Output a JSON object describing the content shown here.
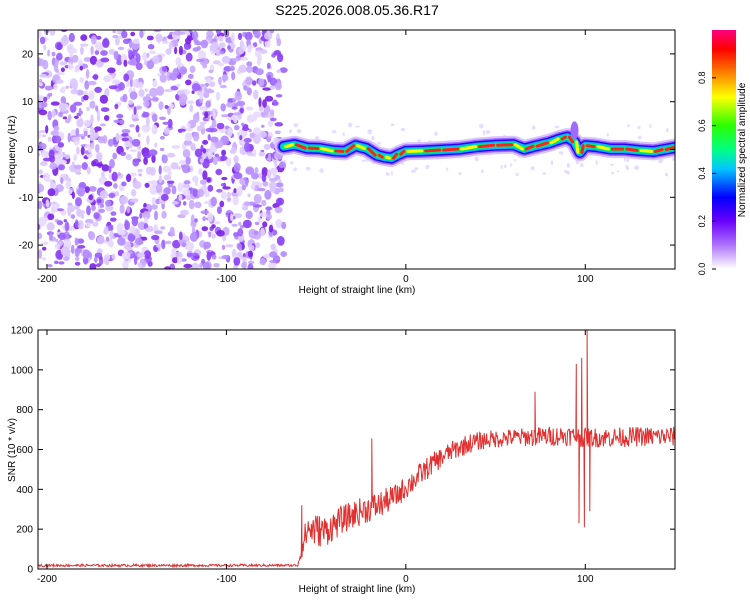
{
  "page": {
    "title": "S225.2026.008.05.36.R17"
  },
  "chart_data": [
    {
      "type": "heatmap",
      "ylabel": "Frequency (Hz)",
      "xlabel": "Height of straight line (km)",
      "xlim": [
        -205,
        150
      ],
      "ylim": [
        -25,
        25
      ],
      "xticks": [
        {
          "value": -200,
          "label": "-200"
        },
        {
          "value": -100,
          "label": "-100"
        },
        {
          "value": 0,
          "label": "0"
        },
        {
          "value": 100,
          "label": "100"
        }
      ],
      "yticks": [
        {
          "value": 20,
          "label": "20"
        },
        {
          "value": 10,
          "label": "10"
        },
        {
          "value": 0,
          "label": "0"
        },
        {
          "value": -10,
          "label": "-10"
        },
        {
          "value": -20,
          "label": "-20"
        }
      ],
      "noise_region_x": [
        -205,
        -68
      ],
      "ridge": {
        "x": [
          -68,
          -62,
          -55,
          -48,
          -40,
          -34,
          -28,
          -22,
          -16,
          -12,
          -8,
          -4,
          0,
          10,
          20,
          30,
          40,
          50,
          60,
          66,
          72,
          80,
          86,
          90,
          94,
          97,
          100,
          106,
          114,
          122,
          130,
          138,
          144,
          150
        ],
        "freq": [
          0.6,
          1.0,
          0.3,
          0.2,
          -0.3,
          -0.4,
          0.8,
          0.2,
          -1.2,
          -1.6,
          -1.8,
          -1.0,
          -0.4,
          -0.3,
          -0.1,
          0.1,
          0.6,
          0.9,
          1.0,
          0.1,
          0.7,
          1.4,
          2.2,
          2.6,
          1.6,
          -0.6,
          0.8,
          0.6,
          0.1,
          0.1,
          -0.2,
          -0.4,
          0.0,
          0.4
        ]
      },
      "colorbar": {
        "label": "Normalized spectral amplitude",
        "range": [
          0,
          1
        ],
        "ticks": [
          {
            "value": 0.0,
            "label": "0.0"
          },
          {
            "value": 0.2,
            "label": "0.2"
          },
          {
            "value": 0.4,
            "label": "0.4"
          },
          {
            "value": 0.6,
            "label": "0.6"
          },
          {
            "value": 0.8,
            "label": "0.8"
          }
        ],
        "colors": [
          "#ffffff",
          "#ae72ff",
          "#6a00ff",
          "#0000ff",
          "#00c8ff",
          "#00ff80",
          "#2bff00",
          "#ffff00",
          "#ff8000",
          "#ff0000",
          "#ff0080"
        ]
      }
    },
    {
      "type": "line",
      "ylabel": "SNR (10 * v/v)",
      "xlabel": "Height of straight line (km)",
      "xlim": [
        -205,
        150
      ],
      "ylim": [
        0,
        1200
      ],
      "xticks": [
        {
          "value": -200,
          "label": "-200"
        },
        {
          "value": -100,
          "label": "-100"
        },
        {
          "value": 0,
          "label": "0"
        },
        {
          "value": 100,
          "label": "100"
        }
      ],
      "yticks": [
        {
          "value": 0,
          "label": "0"
        },
        {
          "value": 200,
          "label": "200"
        },
        {
          "value": 400,
          "label": "400"
        },
        {
          "value": 600,
          "label": "600"
        },
        {
          "value": 800,
          "label": "800"
        },
        {
          "value": 1000,
          "label": "1000"
        },
        {
          "value": 1200,
          "label": "1200"
        }
      ],
      "color": "#e03030",
      "baseline": {
        "x": [
          -205,
          -60
        ],
        "level": 18,
        "jitter": 12
      },
      "trend": {
        "x": [
          -60,
          -55,
          -45,
          -35,
          -25,
          -15,
          -5,
          5,
          15,
          25,
          35,
          45,
          60,
          75,
          90,
          100,
          110,
          130,
          150
        ],
        "y": [
          30,
          200,
          190,
          250,
          290,
          320,
          370,
          450,
          530,
          590,
          630,
          650,
          660,
          665,
          670,
          660,
          660,
          665,
          665
        ],
        "jitter": [
          10,
          90,
          80,
          70,
          70,
          70,
          60,
          60,
          55,
          50,
          50,
          45,
          45,
          50,
          50,
          50,
          50,
          50,
          50
        ]
      },
      "spikes": [
        {
          "x": -58,
          "y": 320
        },
        {
          "x": -19,
          "y": 655
        },
        {
          "x": 72,
          "y": 890
        },
        {
          "x": 95,
          "y": 1030
        },
        {
          "x": 96.5,
          "y": 230
        },
        {
          "x": 98,
          "y": 1060
        },
        {
          "x": 99.5,
          "y": 210
        },
        {
          "x": 101,
          "y": 1200
        },
        {
          "x": 102.5,
          "y": 290
        }
      ]
    }
  ]
}
